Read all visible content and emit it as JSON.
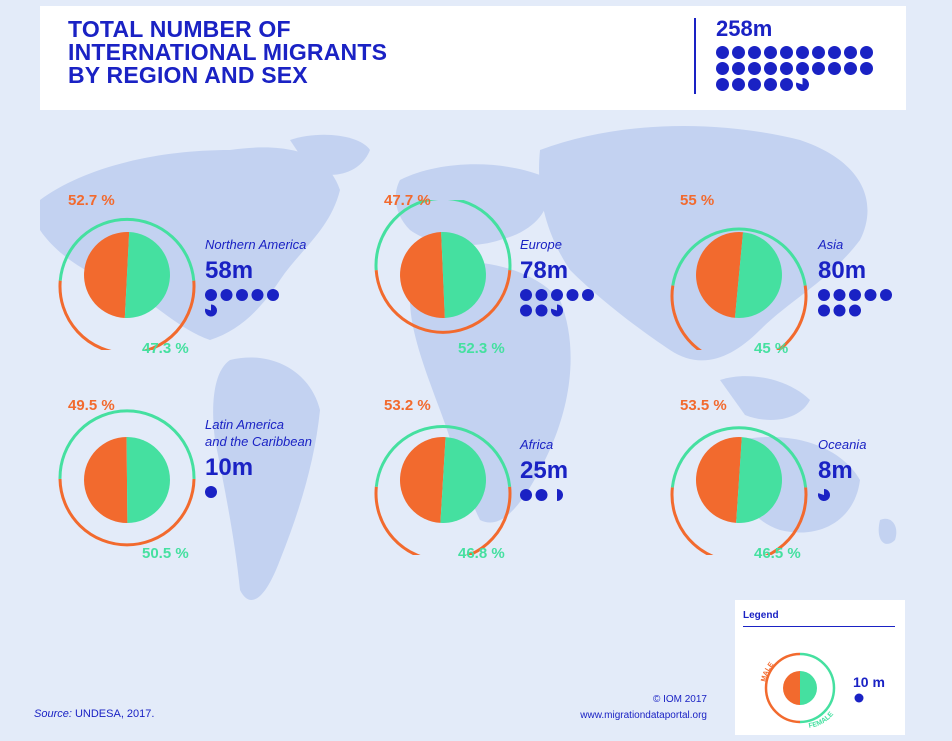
{
  "title": "TOTAL NUMBER OF\nINTERNATIONAL MIGRANTS\nBY REGION AND SEX",
  "total": {
    "label": "258m",
    "dots": 25.8
  },
  "colors": {
    "male": "#f26a2e",
    "female": "#45e0a0",
    "accent": "#1a22c4",
    "map": "#c3d2f1",
    "background": "#e3ebf9"
  },
  "regions": [
    {
      "name": "Northern America",
      "value_label": "58m",
      "dots": 5.8,
      "male_pct": "52.7 %",
      "female_pct": "47.3 %",
      "male": 52.7
    },
    {
      "name": "Europe",
      "value_label": "78m",
      "dots": 7.8,
      "male_pct": "47.7 %",
      "female_pct": "52.3 %",
      "male": 47.7
    },
    {
      "name": "Asia",
      "value_label": "80m",
      "dots": 8.0,
      "male_pct": "55 %",
      "female_pct": "45 %",
      "male": 55
    },
    {
      "name": "Latin America\nand the Caribbean",
      "value_label": "10m",
      "dots": 1.0,
      "male_pct": "49.5 %",
      "female_pct": "50.5 %",
      "male": 49.5
    },
    {
      "name": "Africa",
      "value_label": "25m",
      "dots": 2.5,
      "male_pct": "53.2 %",
      "female_pct": "46.8 %",
      "male": 53.2
    },
    {
      "name": "Oceania",
      "value_label": "8m",
      "dots": 0.8,
      "male_pct": "53.5 %",
      "female_pct": "46.5 %",
      "male": 53.5
    }
  ],
  "source": {
    "prefix": "Source:",
    "text": " UNDESA, 2017."
  },
  "credit": {
    "line1": "© IOM 2017",
    "line2": "www.migrationdataportal.org"
  },
  "legend": {
    "title": "Legend",
    "male_label": "MALE",
    "female_label": "FEMALE",
    "dot_value": "10 m"
  }
}
